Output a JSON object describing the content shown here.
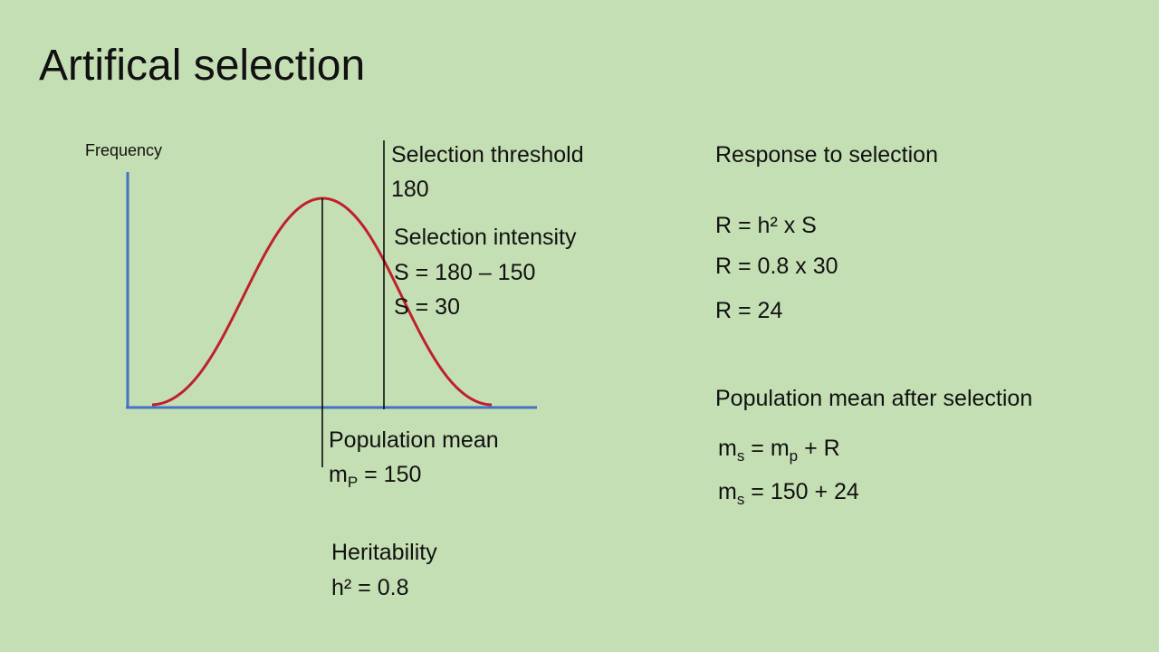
{
  "title": "Artifical selection",
  "diagram": {
    "y_axis_label": "Frequency",
    "threshold": {
      "label": "Selection threshold",
      "value": "180"
    },
    "intensity": {
      "label": "Selection intensity",
      "formula": "S = 180 – 150",
      "result": "S = 30"
    },
    "population_mean": {
      "label": "Population mean",
      "formula": {
        "base": "m",
        "sub": "P",
        "rest": " = 150"
      }
    },
    "heritability": {
      "label": "Heritability",
      "value": "h² = 0.8"
    }
  },
  "response": {
    "heading": "Response to selection",
    "lines": [
      "R = h² x S",
      "R = 0.8 x 30",
      "R = 24"
    ]
  },
  "mean_after": {
    "heading": "Population mean after selection",
    "lines": [
      {
        "base": "m",
        "sub": "s",
        "mid": " = m",
        "sub2": "p",
        "rest": " + R"
      },
      {
        "base": "m",
        "sub": "s",
        "rest": " = 150 + 24"
      }
    ]
  }
}
